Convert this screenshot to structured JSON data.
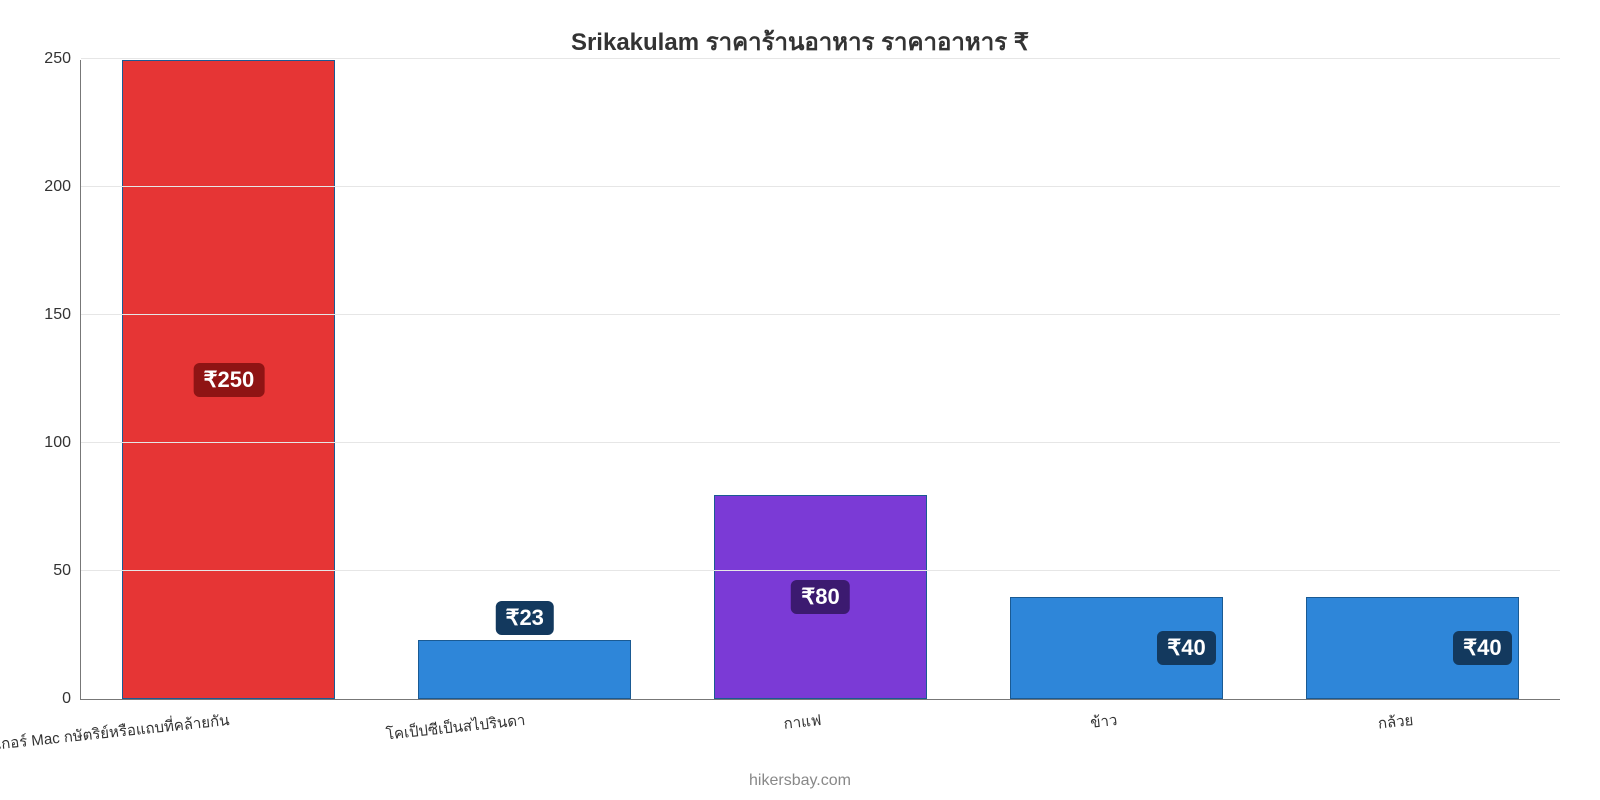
{
  "chart": {
    "type": "bar",
    "title": "Srikakulam ราคาร้านอาหาร ราคาอาหาร ₹",
    "title_fontsize": 24,
    "title_color": "#333333",
    "background_color": "#ffffff",
    "grid_color": "#e6e6e6",
    "axis_color": "#777777",
    "label_fontsize": 16,
    "xlabel_fontsize": 15,
    "badge_fontsize": 22,
    "bar_width_ratio": 0.72,
    "bar_border_color": "#1a5a93",
    "ylim": [
      0,
      250
    ],
    "ytick_step": 50,
    "yticks": [
      0,
      50,
      100,
      150,
      200,
      250
    ],
    "categories": [
      "เบอร์เกอร์ Mac กษัตริย์หรือแถบที่คล้ายกัน",
      "โคเป็ปซีเป็นสไปรินดา",
      "กาแฟ",
      "ข้าว",
      "กล้วย"
    ],
    "values": [
      250,
      23,
      80,
      40,
      40
    ],
    "value_labels": [
      "₹250",
      "₹23",
      "₹80",
      "₹40",
      "₹40"
    ],
    "bar_colors": [
      "#e63535",
      "#2e86d9",
      "#7b3ad6",
      "#2e86d9",
      "#2e86d9"
    ],
    "badge_colors": [
      "#8f1414",
      "#13395e",
      "#3c1a70",
      "#13395e",
      "#13395e"
    ],
    "badge_in_bar": [
      true,
      false,
      true,
      true,
      true
    ],
    "attribution": "hikersbay.com",
    "attribution_fontsize": 16
  }
}
